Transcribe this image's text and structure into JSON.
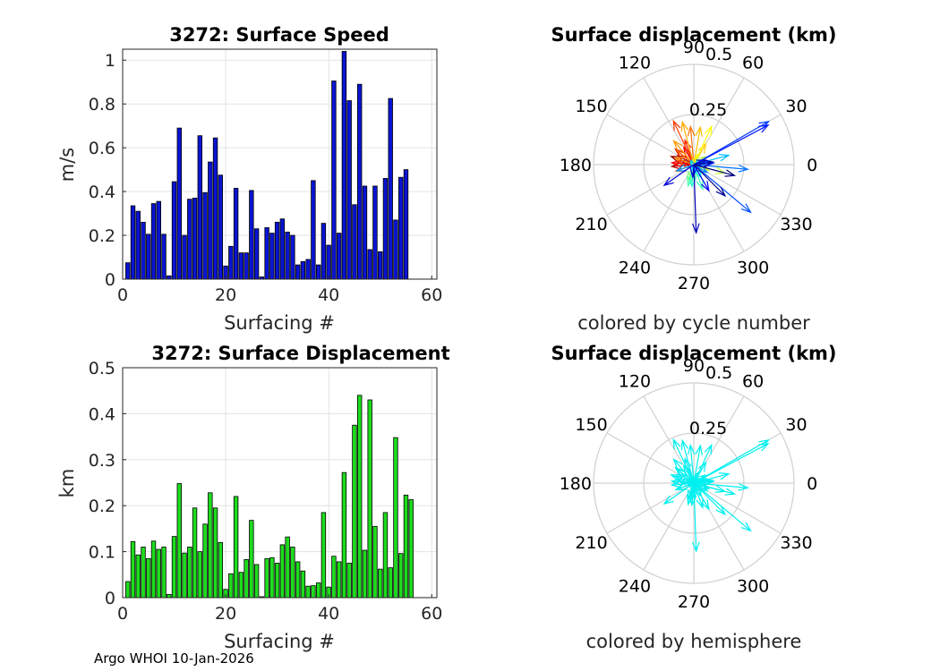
{
  "footer": "Argo WHOI 10-Jan-2026",
  "chart_data": [
    {
      "id": "speed",
      "type": "bar",
      "title": "3272: Surface Speed",
      "xlabel": "Surfacing #",
      "ylabel": "m/s",
      "color": "#0a14d2",
      "xlim": [
        0,
        61
      ],
      "ylim": [
        0,
        1.05
      ],
      "xticks": [
        0,
        20,
        40,
        60
      ],
      "yticks": [
        0,
        0.2,
        0.4,
        0.6,
        0.8,
        1
      ],
      "ytick_labels": [
        "0",
        "0.2",
        "0.4",
        "0.6",
        "0.8",
        "1"
      ],
      "x": [
        1,
        2,
        3,
        4,
        5,
        6,
        7,
        8,
        9,
        10,
        11,
        12,
        13,
        14,
        15,
        16,
        17,
        18,
        19,
        20,
        21,
        22,
        23,
        24,
        25,
        26,
        27,
        28,
        29,
        30,
        31,
        32,
        33,
        34,
        35,
        36,
        37,
        38,
        39,
        40,
        41,
        42,
        43,
        44,
        45,
        46,
        47,
        48,
        49,
        50,
        51,
        52,
        53,
        54,
        55,
        56,
        57,
        58
      ],
      "values": [
        0.075,
        0.335,
        0.31,
        0.26,
        0.205,
        0.345,
        0.355,
        0.205,
        0.015,
        0.445,
        0.69,
        0.2,
        0.365,
        0.37,
        0.655,
        0.395,
        0.535,
        0.645,
        0.475,
        0.06,
        0.15,
        0.415,
        0.12,
        0.12,
        0.405,
        0.23,
        0.01,
        0.235,
        0.21,
        0.26,
        0.275,
        0.215,
        0.2,
        0.065,
        0.08,
        0.09,
        0.45,
        0.065,
        0.255,
        0.155,
        0.905,
        0.21,
        1.04,
        0.815,
        0.34,
        0.89,
        0.425,
        0.135,
        0.425,
        0.125,
        0.46,
        0.825,
        0.27,
        0.465,
        0.5,
        0,
        0,
        0
      ]
    },
    {
      "id": "displacement",
      "type": "bar",
      "title": "3272: Surface Displacement",
      "xlabel": "Surfacing #",
      "ylabel": "km",
      "color": "#1edc1e",
      "xlim": [
        0,
        61
      ],
      "ylim": [
        0,
        0.5
      ],
      "xticks": [
        0,
        20,
        40,
        60
      ],
      "yticks": [
        0,
        0.1,
        0.2,
        0.3,
        0.4,
        0.5
      ],
      "ytick_labels": [
        "0",
        "0.1",
        "0.2",
        "0.3",
        "0.4",
        "0.5"
      ],
      "x": [
        1,
        2,
        3,
        4,
        5,
        6,
        7,
        8,
        9,
        10,
        11,
        12,
        13,
        14,
        15,
        16,
        17,
        18,
        19,
        20,
        21,
        22,
        23,
        24,
        25,
        26,
        27,
        28,
        29,
        30,
        31,
        32,
        33,
        34,
        35,
        36,
        37,
        38,
        39,
        40,
        41,
        42,
        43,
        44,
        45,
        46,
        47,
        48,
        49,
        50,
        51,
        52,
        53,
        54,
        55,
        56,
        57,
        58
      ],
      "values": [
        0.035,
        0.122,
        0.093,
        0.11,
        0.085,
        0.123,
        0.105,
        0.11,
        0.007,
        0.133,
        0.248,
        0.097,
        0.11,
        0.195,
        0.1,
        0.16,
        0.228,
        0.195,
        0.12,
        0.018,
        0.052,
        0.22,
        0.055,
        0.083,
        0.168,
        0.072,
        0.002,
        0.085,
        0.087,
        0.075,
        0.115,
        0.132,
        0.11,
        0.078,
        0.058,
        0.025,
        0.026,
        0.032,
        0.185,
        0.023,
        0.09,
        0.078,
        0.272,
        0.075,
        0.375,
        0.44,
        0.103,
        0.43,
        0.155,
        0.062,
        0.185,
        0.065,
        0.348,
        0.096,
        0.223,
        0.213,
        0,
        0
      ]
    },
    {
      "id": "polar_cycle",
      "type": "polar-quiver",
      "title": "Surface displacement (km)",
      "caption": "colored by cycle number",
      "rlim": [
        0,
        0.5
      ],
      "rticks": [
        0.25,
        0.5
      ],
      "rtick_labels": [
        "0.25",
        "0.5"
      ],
      "angle_ticks": [
        0,
        30,
        60,
        90,
        120,
        150,
        180,
        210,
        240,
        270,
        300,
        330
      ],
      "angle_labels": [
        "0",
        "30",
        "60",
        "90",
        "120",
        "150",
        "180",
        "210",
        "240",
        "270",
        "300",
        "330"
      ],
      "colormap": "jet",
      "vectors": [
        {
          "deg": 200,
          "r": 0.035
        },
        {
          "deg": 160,
          "r": 0.12
        },
        {
          "deg": 150,
          "r": 0.09
        },
        {
          "deg": 185,
          "r": 0.11
        },
        {
          "deg": 170,
          "r": 0.085
        },
        {
          "deg": 140,
          "r": 0.12
        },
        {
          "deg": 120,
          "r": 0.1
        },
        {
          "deg": 175,
          "r": 0.11
        },
        {
          "deg": 90,
          "r": 0.007
        },
        {
          "deg": 110,
          "r": 0.13
        },
        {
          "deg": 115,
          "r": 0.24
        },
        {
          "deg": 200,
          "r": 0.095
        },
        {
          "deg": 140,
          "r": 0.11
        },
        {
          "deg": 95,
          "r": 0.19
        },
        {
          "deg": 160,
          "r": 0.1
        },
        {
          "deg": 130,
          "r": 0.155
        },
        {
          "deg": 105,
          "r": 0.22
        },
        {
          "deg": 80,
          "r": 0.19
        },
        {
          "deg": 60,
          "r": 0.12
        },
        {
          "deg": 100,
          "r": 0.018
        },
        {
          "deg": 70,
          "r": 0.052
        },
        {
          "deg": 65,
          "r": 0.21
        },
        {
          "deg": 20,
          "r": 0.055
        },
        {
          "deg": 340,
          "r": 0.08
        },
        {
          "deg": 345,
          "r": 0.16
        },
        {
          "deg": 35,
          "r": 0.07
        },
        {
          "deg": 240,
          "r": 0.002
        },
        {
          "deg": 250,
          "r": 0.085
        },
        {
          "deg": 260,
          "r": 0.085
        },
        {
          "deg": 275,
          "r": 0.075
        },
        {
          "deg": 255,
          "r": 0.11
        },
        {
          "deg": 290,
          "r": 0.13
        },
        {
          "deg": 265,
          "r": 0.11
        },
        {
          "deg": 300,
          "r": 0.075
        },
        {
          "deg": 315,
          "r": 0.058
        },
        {
          "deg": 270,
          "r": 0.025
        },
        {
          "deg": 250,
          "r": 0.026
        },
        {
          "deg": 280,
          "r": 0.032
        },
        {
          "deg": 15,
          "r": 0.18
        },
        {
          "deg": 350,
          "r": 0.023
        },
        {
          "deg": 200,
          "r": 0.09
        },
        {
          "deg": 330,
          "r": 0.078
        },
        {
          "deg": 355,
          "r": 0.27
        },
        {
          "deg": 10,
          "r": 0.075
        },
        {
          "deg": 320,
          "r": 0.37
        },
        {
          "deg": 30,
          "r": 0.43
        },
        {
          "deg": 5,
          "r": 0.1
        },
        {
          "deg": 28,
          "r": 0.42
        },
        {
          "deg": 300,
          "r": 0.15
        },
        {
          "deg": 265,
          "r": 0.062
        },
        {
          "deg": 215,
          "r": 0.18
        },
        {
          "deg": 20,
          "r": 0.065
        },
        {
          "deg": 272,
          "r": 0.34
        },
        {
          "deg": 8,
          "r": 0.095
        },
        {
          "deg": 315,
          "r": 0.22
        },
        {
          "deg": 345,
          "r": 0.21
        }
      ]
    },
    {
      "id": "polar_hemisphere",
      "type": "polar-quiver",
      "title": "Surface displacement (km)",
      "caption": "colored by hemisphere",
      "rlim": [
        0,
        0.5
      ],
      "rticks": [
        0.25,
        0.5
      ],
      "rtick_labels": [
        "0.25",
        "0.5"
      ],
      "angle_ticks": [
        0,
        30,
        60,
        90,
        120,
        150,
        180,
        210,
        240,
        270,
        300,
        330
      ],
      "angle_labels": [
        "0",
        "30",
        "60",
        "90",
        "120",
        "150",
        "180",
        "210",
        "240",
        "270",
        "300",
        "330"
      ],
      "color": "#00f0f0"
    }
  ]
}
